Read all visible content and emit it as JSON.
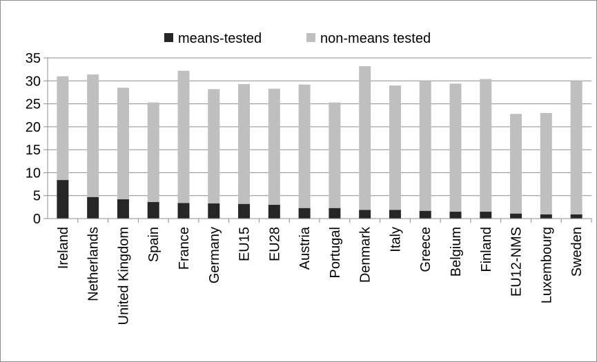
{
  "chart_data": {
    "type": "bar",
    "stacked": true,
    "title": "",
    "xlabel": "",
    "ylabel": "",
    "ylim": [
      0,
      35
    ],
    "yticks": [
      "0",
      "5",
      "10",
      "15",
      "20",
      "25",
      "30",
      "35"
    ],
    "grid": true,
    "legend_position": "top",
    "categories": [
      "Ireland",
      "Netherlands",
      "United Kingdom",
      "Spain",
      "France",
      "Germany",
      "EU15",
      "EU28",
      "Austria",
      "Portugal",
      "Denmark",
      "Italy",
      "Greece",
      "Belgium",
      "Finland",
      "EU12-NMS",
      "Luxembourg",
      "Sweden"
    ],
    "series": [
      {
        "name": "means-tested",
        "color": "#262626",
        "values": [
          8.4,
          4.7,
          4.2,
          3.6,
          3.4,
          3.3,
          3.2,
          3.0,
          2.3,
          2.3,
          1.9,
          1.9,
          1.7,
          1.5,
          1.5,
          1.1,
          0.9,
          0.9
        ]
      },
      {
        "name": "non-means tested",
        "color": "#bfbfbf",
        "values": [
          22.6,
          26.7,
          24.3,
          21.7,
          28.8,
          24.9,
          26.1,
          25.3,
          26.9,
          23.0,
          31.3,
          27.1,
          28.3,
          27.9,
          28.9,
          21.7,
          22.1,
          29.1
        ]
      }
    ]
  }
}
